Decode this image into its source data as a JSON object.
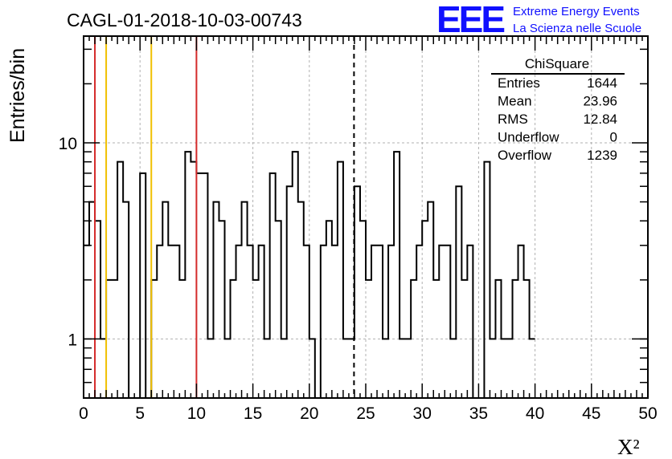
{
  "chart_data": {
    "type": "bar",
    "title": "CAGL-01-2018-10-03-00743",
    "xlabel": "X²",
    "ylabel": "Entries/bin",
    "x_range": [
      0,
      50
    ],
    "y_range": [
      0.5,
      35
    ],
    "y_scale": "log",
    "grid": true,
    "histogram_style": "step outline",
    "bin_width": 0.5,
    "x_ticks": [
      "0",
      "5",
      "10",
      "15",
      "20",
      "25",
      "30",
      "35",
      "40",
      "45",
      "50"
    ],
    "y_ticks": [
      "1",
      "10"
    ],
    "bin_counts": [
      3,
      5,
      4,
      1,
      2,
      2,
      8,
      5,
      0,
      0,
      7,
      0,
      2,
      3,
      5,
      3,
      3,
      2,
      9,
      8,
      7,
      7,
      1,
      5,
      4,
      1,
      2,
      3,
      5,
      3,
      2,
      3,
      1,
      7,
      4,
      1,
      6,
      9,
      5,
      3,
      1,
      0,
      3,
      4,
      3,
      8,
      1,
      1,
      6,
      4,
      2,
      3,
      3,
      1,
      3,
      9,
      1,
      1,
      2,
      3,
      4,
      5,
      2,
      3,
      3,
      1,
      6,
      2,
      3,
      0,
      0,
      8,
      1,
      2,
      1,
      1,
      2,
      3,
      2,
      1
    ],
    "vertical_lines": [
      {
        "x": 1,
        "color": "#d42a2a",
        "style": "solid"
      },
      {
        "x": 2,
        "color": "#f0c000",
        "style": "solid"
      },
      {
        "x": 6,
        "color": "#f0c000",
        "style": "solid"
      },
      {
        "x": 10,
        "color": "#d42a2a",
        "style": "solid"
      },
      {
        "x": 23.96,
        "color": "#000000",
        "style": "dashed"
      }
    ],
    "stats_box": {
      "title": "ChiSquare",
      "rows": [
        {
          "label": "Entries",
          "value": "1644"
        },
        {
          "label": "Mean",
          "value": "23.96"
        },
        {
          "label": "RMS",
          "value": "12.84"
        },
        {
          "label": "Underflow",
          "value": "0"
        },
        {
          "label": "Overflow",
          "value": "1239"
        }
      ]
    }
  },
  "logo": {
    "mark": "EEE",
    "line1": "Extreme Energy Events",
    "line2": "La Scienza nelle Scuole",
    "color": "#1010ff"
  }
}
